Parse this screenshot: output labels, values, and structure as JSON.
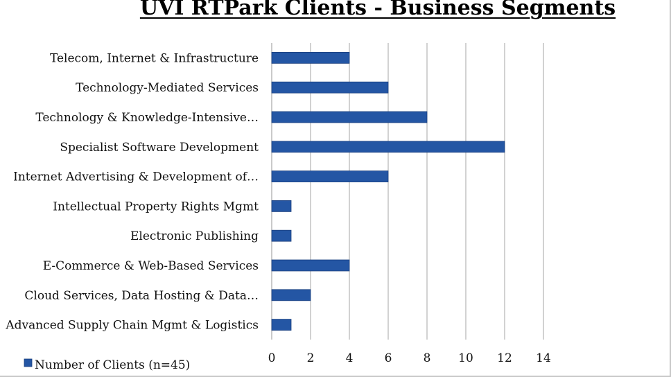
{
  "chart_data": {
    "type": "bar",
    "orientation": "horizontal",
    "title": "UVI RTPark Clients - Business Segments",
    "categories": [
      "Telecom, Internet & Infrastructure",
      "Technology-Mediated Services",
      "Technology & Knowledge-Intensive…",
      "Specialist Software Development",
      "Internet Advertising & Development of…",
      "Intellectual Property Rights Mgmt",
      "Electronic Publishing",
      "E-Commerce & Web-Based Services",
      "Cloud Services, Data Hosting & Data…",
      "Advanced Supply Chain Mgmt & Logistics"
    ],
    "series": [
      {
        "name": "Number of Clients (n=45)",
        "values": [
          4,
          6,
          8,
          12,
          6,
          1,
          1,
          4,
          2,
          1
        ]
      }
    ],
    "xlim": [
      0,
      14
    ],
    "xticks": [
      "0",
      "2",
      "4",
      "6",
      "8",
      "10",
      "12",
      "14"
    ],
    "grid": "vertical",
    "legend": "bottom-left",
    "colors": {
      "bar": "#2456a4",
      "bar_edge": "#1a3f7e",
      "grid": "#a6a6a6"
    }
  }
}
